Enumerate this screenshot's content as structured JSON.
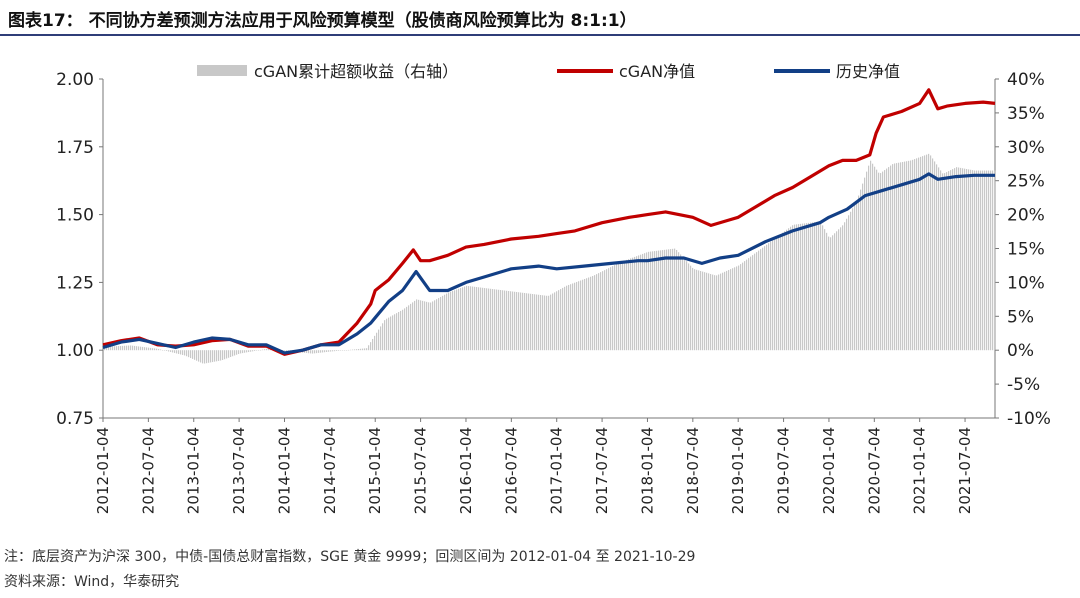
{
  "figure": {
    "title": "图表17：  不同协方差预测方法应用于风险预算模型（股债商风险预算比为 8:1:1）",
    "note": "注：底层资产为沪深 300，中债-国债总财富指数，SGE 黄金 9999；回测区间为 2012-01-04 至 2021-10-29",
    "source": "资料来源：Wind，华泰研究"
  },
  "chart_data": {
    "type": "line",
    "title": "",
    "xlabel": "",
    "ylabel": "",
    "ylim": [
      0.75,
      2.0
    ],
    "y_ticks": [
      "2.00",
      "1.75",
      "1.50",
      "1.25",
      "1.00",
      "0.75"
    ],
    "y2lim": [
      -10,
      40
    ],
    "y2_ticks": [
      "40%",
      "35%",
      "30%",
      "25%",
      "20%",
      "15%",
      "10%",
      "5%",
      "0%",
      "-5%",
      "-10%"
    ],
    "x_range": [
      2012.0,
      2021.83
    ],
    "categories": [
      "2012-01-04",
      "2012-07-04",
      "2013-01-04",
      "2013-07-04",
      "2014-01-04",
      "2014-07-04",
      "2015-01-04",
      "2015-07-04",
      "2016-01-04",
      "2016-07-04",
      "2017-01-04",
      "2017-07-04",
      "2018-01-04",
      "2018-07-04",
      "2019-01-04",
      "2019-07-04",
      "2020-01-04",
      "2020-07-04",
      "2021-01-04",
      "2021-07-04"
    ],
    "legend_position": "top",
    "series": [
      {
        "name": "cGAN累计超额收益（右轴）",
        "kind": "bar",
        "axis": "right",
        "color": "#c8c8c8",
        "x": [
          2012.0,
          2012.3,
          2012.6,
          2012.9,
          2013.1,
          2013.3,
          2013.5,
          2013.8,
          2014.0,
          2014.3,
          2014.5,
          2014.75,
          2014.9,
          2015.1,
          2015.3,
          2015.45,
          2015.6,
          2015.8,
          2016.0,
          2016.3,
          2016.6,
          2016.9,
          2017.1,
          2017.4,
          2017.7,
          2018.0,
          2018.3,
          2018.5,
          2018.75,
          2019.0,
          2019.3,
          2019.6,
          2019.9,
          2020.0,
          2020.15,
          2020.3,
          2020.45,
          2020.55,
          2020.7,
          2020.9,
          2021.1,
          2021.25,
          2021.4,
          2021.6,
          2021.83
        ],
        "values": [
          0.5,
          0.7,
          0.2,
          -0.8,
          -2.0,
          -1.5,
          -0.5,
          0.2,
          -0.1,
          -0.5,
          -0.2,
          0.1,
          0.3,
          4.5,
          6.0,
          7.5,
          7.0,
          8.5,
          9.5,
          9.0,
          8.5,
          8.0,
          9.5,
          11.0,
          13.0,
          14.5,
          15.0,
          12.0,
          11.0,
          12.5,
          15.5,
          18.5,
          19.0,
          16.5,
          18.5,
          22.0,
          28.0,
          26.0,
          27.5,
          28.0,
          29.0,
          26.0,
          27.0,
          26.5,
          26.5
        ]
      },
      {
        "name": "cGAN净值",
        "kind": "line",
        "axis": "left",
        "color": "#c00000",
        "x": [
          2012.0,
          2012.2,
          2012.4,
          2012.6,
          2012.8,
          2013.0,
          2013.2,
          2013.4,
          2013.6,
          2013.8,
          2014.0,
          2014.2,
          2014.4,
          2014.6,
          2014.8,
          2014.95,
          2015.0,
          2015.15,
          2015.3,
          2015.42,
          2015.5,
          2015.6,
          2015.8,
          2016.0,
          2016.2,
          2016.5,
          2016.8,
          2017.0,
          2017.2,
          2017.5,
          2017.8,
          2018.0,
          2018.2,
          2018.5,
          2018.7,
          2018.9,
          2019.0,
          2019.2,
          2019.4,
          2019.6,
          2019.8,
          2020.0,
          2020.15,
          2020.3,
          2020.45,
          2020.52,
          2020.6,
          2020.8,
          2021.0,
          2021.1,
          2021.2,
          2021.3,
          2021.5,
          2021.7,
          2021.83
        ],
        "values": [
          1.02,
          1.035,
          1.045,
          1.02,
          1.015,
          1.02,
          1.035,
          1.04,
          1.015,
          1.015,
          0.985,
          1.0,
          1.02,
          1.03,
          1.1,
          1.17,
          1.22,
          1.26,
          1.32,
          1.37,
          1.33,
          1.33,
          1.35,
          1.38,
          1.39,
          1.41,
          1.42,
          1.43,
          1.44,
          1.47,
          1.49,
          1.5,
          1.51,
          1.49,
          1.46,
          1.48,
          1.49,
          1.53,
          1.57,
          1.6,
          1.64,
          1.68,
          1.7,
          1.7,
          1.72,
          1.8,
          1.86,
          1.88,
          1.91,
          1.96,
          1.89,
          1.9,
          1.91,
          1.915,
          1.91
        ]
      },
      {
        "name": "历史净值",
        "kind": "line",
        "axis": "left",
        "color": "#123f86",
        "x": [
          2012.0,
          2012.2,
          2012.4,
          2012.6,
          2012.8,
          2013.0,
          2013.2,
          2013.4,
          2013.6,
          2013.8,
          2014.0,
          2014.2,
          2014.4,
          2014.6,
          2014.8,
          2014.95,
          2015.0,
          2015.15,
          2015.3,
          2015.45,
          2015.6,
          2015.8,
          2016.0,
          2016.2,
          2016.5,
          2016.8,
          2017.0,
          2017.3,
          2017.6,
          2017.9,
          2018.0,
          2018.2,
          2018.4,
          2018.6,
          2018.8,
          2019.0,
          2019.3,
          2019.6,
          2019.9,
          2020.0,
          2020.2,
          2020.4,
          2020.6,
          2020.8,
          2021.0,
          2021.1,
          2021.2,
          2021.4,
          2021.6,
          2021.83
        ],
        "values": [
          1.01,
          1.03,
          1.04,
          1.025,
          1.01,
          1.03,
          1.045,
          1.04,
          1.02,
          1.02,
          0.99,
          1.0,
          1.02,
          1.02,
          1.06,
          1.1,
          1.12,
          1.18,
          1.22,
          1.29,
          1.22,
          1.22,
          1.25,
          1.27,
          1.3,
          1.31,
          1.3,
          1.31,
          1.32,
          1.33,
          1.33,
          1.34,
          1.34,
          1.32,
          1.34,
          1.35,
          1.4,
          1.44,
          1.47,
          1.49,
          1.52,
          1.57,
          1.59,
          1.61,
          1.63,
          1.65,
          1.63,
          1.64,
          1.645,
          1.645
        ]
      }
    ]
  }
}
